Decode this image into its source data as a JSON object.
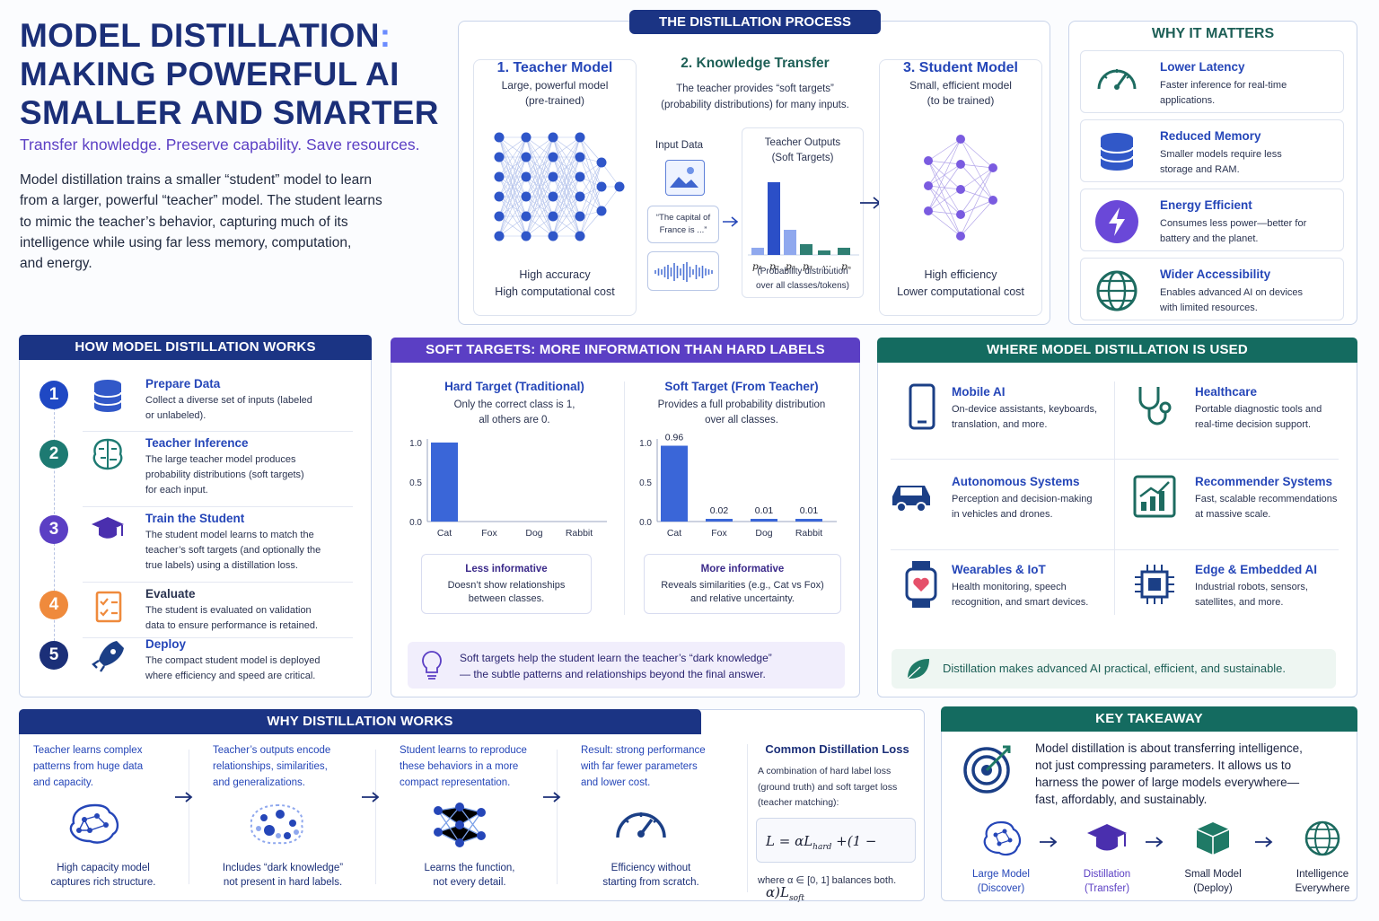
{
  "title": {
    "line1": "MODEL DISTILLATION",
    "colon": ":",
    "line2": "MAKING POWERFUL AI",
    "line3": "SMALLER AND SMARTER"
  },
  "tagline": "Transfer knowledge. Preserve capability. Save resources.",
  "intro": [
    "Model distillation trains a smaller “student” model to learn",
    "from a larger, powerful “teacher” model. The student learns",
    "to mimic the teacher’s behavior, capturing much of its",
    "intelligence while using far less memory, computation,",
    "and energy."
  ],
  "process": {
    "header": "THE DISTILLATION PROCESS",
    "teacher": {
      "title": "1. Teacher Model",
      "desc1": "Large, powerful model",
      "desc2": "(pre-trained)",
      "foot1": "High accuracy",
      "foot2": "High computational cost"
    },
    "transfer": {
      "title": "2. Knowledge Transfer",
      "desc1": "The teacher provides “soft targets”",
      "desc2": "(probability distributions) for many inputs.",
      "input_label": "Input Data",
      "quote1": "“The capital of",
      "quote2": "France is ...”",
      "outputs1": "Teacher Outputs",
      "outputs2": "(Soft Targets)",
      "p_labels": [
        "p₁",
        "p₂",
        "p₃",
        "p₃",
        "⋯",
        "pₙ"
      ],
      "dist1": "(Probability distribution",
      "dist2": "over all classes/tokens)"
    },
    "student": {
      "title": "3. Student Model",
      "desc1": "Small, efficient model",
      "desc2": "(to be trained)",
      "foot1": "High efficiency",
      "foot2": "Lower computational cost"
    }
  },
  "why_matters": {
    "header": "WHY IT MATTERS",
    "items": [
      {
        "title": "Lower Latency",
        "l1": "Faster inference for real-time",
        "l2": "applications.",
        "icon": "gauge-icon"
      },
      {
        "title": "Reduced Memory",
        "l1": "Smaller models require less",
        "l2": "storage and RAM.",
        "icon": "database-icon"
      },
      {
        "title": "Energy Efficient",
        "l1": "Consumes less power—better for",
        "l2": "battery and the planet.",
        "icon": "lightning-icon"
      },
      {
        "title": "Wider Accessibility",
        "l1": "Enables advanced AI on devices",
        "l2": "with limited resources.",
        "icon": "globe-icon"
      }
    ]
  },
  "how": {
    "header": "HOW MODEL DISTILLATION WORKS",
    "steps": [
      {
        "num": "1",
        "title": "Prepare Data",
        "lines": [
          "Collect a diverse set of inputs (labeled",
          "or unlabeled)."
        ],
        "color": "#1f48c4"
      },
      {
        "num": "2",
        "title": "Teacher Inference",
        "lines": [
          "The large teacher model produces",
          "probability distributions (soft targets)",
          "for each input."
        ],
        "color": "#1d7a72"
      },
      {
        "num": "3",
        "title": "Train the Student",
        "lines": [
          "The student model learns to match the",
          "teacher’s soft targets (and optionally the",
          "true labels) using a distillation loss."
        ],
        "color": "#5b3fc4"
      },
      {
        "num": "4",
        "title": "Evaluate",
        "lines": [
          "The student is evaluated on validation",
          "data to ensure performance is retained."
        ],
        "color": "#ef8a3c"
      },
      {
        "num": "5",
        "title": "Deploy",
        "lines": [
          "The compact student model is deployed",
          "where efficiency and speed are critical."
        ],
        "color": "#1b2f78"
      }
    ]
  },
  "soft": {
    "header": "SOFT TARGETS: MORE INFORMATION THAN HARD LABELS",
    "hard": {
      "title": "Hard Target (Traditional)",
      "d1": "Only the correct class is 1,",
      "d2": "all others are 0.",
      "note_title": "Less informative",
      "note1": "Doesn’t show relationships",
      "note2": "between classes."
    },
    "softt": {
      "title": "Soft Target (From Teacher)",
      "d1": "Provides a full probability distribution",
      "d2": "over all classes.",
      "note_title": "More informative",
      "note1": "Reveals similarities (e.g., Cat vs Fox)",
      "note2": "and relative uncertainty."
    },
    "tip1": "Soft targets help the student learn the teacher’s “dark knowledge”",
    "tip2": "— the subtle patterns and relationships beyond the final answer."
  },
  "chart_data": [
    {
      "type": "bar",
      "title": "Hard Target (Traditional)",
      "categories": [
        "Cat",
        "Fox",
        "Dog",
        "Rabbit"
      ],
      "values": [
        1,
        0,
        0,
        0
      ],
      "ylim": [
        0,
        1
      ],
      "yticks": [
        "1.0",
        "0.5",
        "0.0"
      ]
    },
    {
      "type": "bar",
      "title": "Soft Target (From Teacher)",
      "categories": [
        "Cat",
        "Fox",
        "Dog",
        "Rabbit"
      ],
      "values": [
        0.96,
        0.02,
        0.01,
        0.01
      ],
      "value_labels": [
        "0.96",
        "0.02",
        "0.01",
        "0.01"
      ],
      "ylim": [
        0,
        1
      ],
      "yticks": [
        "1.0",
        "0.5",
        "0.0"
      ]
    }
  ],
  "where": {
    "header": "WHERE MODEL DISTILLATION IS USED",
    "items": [
      {
        "title": "Mobile AI",
        "l1": "On-device assistants, keyboards,",
        "l2": "translation, and more.",
        "icon": "phone-icon"
      },
      {
        "title": "Healthcare",
        "l1": "Portable diagnostic tools and",
        "l2": "real-time decision support.",
        "icon": "stethoscope-icon"
      },
      {
        "title": "Autonomous Systems",
        "l1": "Perception and decision-making",
        "l2": "in vehicles and drones.",
        "icon": "car-icon"
      },
      {
        "title": "Recommender Systems",
        "l1": "Fast, scalable recommendations",
        "l2": "at massive scale.",
        "icon": "growth-chart-icon"
      },
      {
        "title": "Wearables & IoT",
        "l1": "Health monitoring, speech",
        "l2": "recognition, and smart devices.",
        "icon": "smartwatch-icon"
      },
      {
        "title": "Edge & Embedded AI",
        "l1": "Industrial robots, sensors,",
        "l2": "satellites, and more.",
        "icon": "chip-icon"
      }
    ],
    "footer": "Distillation makes advanced AI practical, efficient, and sustainable."
  },
  "works": {
    "header": "WHY DISTILLATION WORKS",
    "cols": [
      {
        "top": [
          "Teacher learns complex",
          "patterns from huge data",
          "and capacity."
        ],
        "bottom": [
          "High capacity model",
          "captures rich structure."
        ]
      },
      {
        "top": [
          "Teacher’s outputs encode",
          "relationships, similarities,",
          "and generalizations."
        ],
        "bottom": [
          "Includes “dark knowledge”",
          "not present in hard labels."
        ]
      },
      {
        "top": [
          "Student learns to reproduce",
          "these behaviors in a more",
          "compact representation."
        ],
        "bottom": [
          "Learns the function,",
          "not every detail."
        ]
      },
      {
        "top": [
          "Result: strong performance",
          "with far fewer parameters",
          "and lower cost."
        ],
        "bottom": [
          "Efficiency without",
          "starting from scratch."
        ]
      }
    ],
    "loss": {
      "title": "Common Distillation Loss",
      "l1": "A combination of hard label loss",
      "l2": "(ground truth) and soft target loss",
      "l3": "(teacher matching):",
      "where": "where α ∈ [0, 1] balances both."
    }
  },
  "takeaway": {
    "header": "KEY TAKEAWAY",
    "lines": [
      "Model distillation is about transferring intelligence,",
      "not just compressing parameters.  It allows us to",
      "harness the power of large models everywhere—",
      "fast, affordably, and sustainably."
    ],
    "flow": [
      {
        "l1": "Large Model",
        "l2": "(Discover)"
      },
      {
        "l1": "Distillation",
        "l2": "(Transfer)"
      },
      {
        "l1": "Small Model",
        "l2": "(Deploy)"
      },
      {
        "l1": "Intelligence",
        "l2": "Everywhere"
      }
    ]
  }
}
